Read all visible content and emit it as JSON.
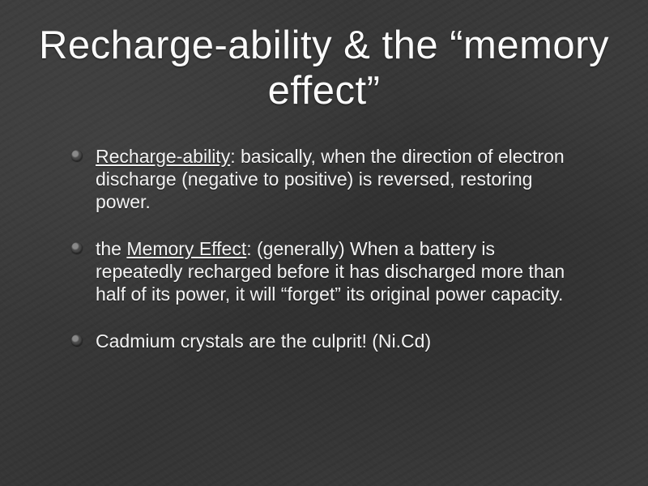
{
  "slide": {
    "background_color": "#3a3a3a",
    "text_color": "#f5f5f5",
    "title": "Recharge-ability & the “memory effect”",
    "title_fontsize": 49,
    "body_fontsize": 23,
    "font_family": "Arial",
    "bullets": [
      {
        "term": "Recharge-ability",
        "rest": ": basically, when the direction of electron discharge (negative to positive) is reversed, restoring power."
      },
      {
        "prefix": "the ",
        "term": "Memory Effect",
        "rest": ": (generally) When a battery is repeatedly recharged before it has discharged more than half of its power, it will “forget” its original power capacity."
      },
      {
        "text": "Cadmium crystals are the culprit! (Ni.Cd)"
      }
    ],
    "bullet_marker_color": "#4a4a4a"
  }
}
